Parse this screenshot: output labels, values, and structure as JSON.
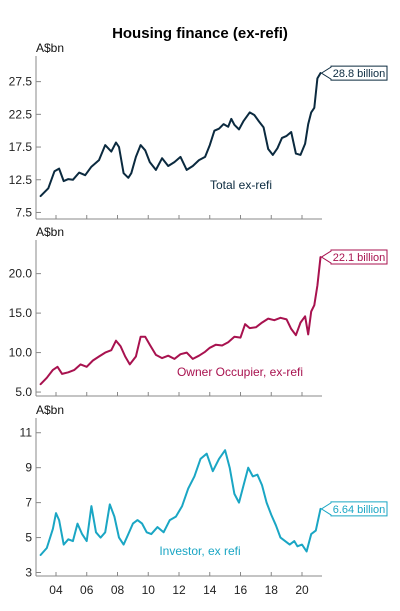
{
  "chart_data": {
    "type": "line",
    "title": "Housing finance (ex-refi)",
    "x_range": [
      2002.7,
      2021.3
    ],
    "x_ticks": [
      {
        "value": 2004,
        "label": "04"
      },
      {
        "value": 2006,
        "label": "06"
      },
      {
        "value": 2008,
        "label": "08"
      },
      {
        "value": 2010,
        "label": "10"
      },
      {
        "value": 2012,
        "label": "12"
      },
      {
        "value": 2014,
        "label": "14"
      },
      {
        "value": 2016,
        "label": "16"
      },
      {
        "value": 2018,
        "label": "18"
      },
      {
        "value": 2020,
        "label": "20"
      }
    ],
    "panels": [
      {
        "id": "total",
        "unit": "A$bn",
        "series_label": "Total ex-refi",
        "color": "#0b2a3f",
        "ylim": [
          6.5,
          30.5
        ],
        "y_ticks": [
          {
            "value": 7.5,
            "label": "7.5"
          },
          {
            "value": 12.5,
            "label": "12.5"
          },
          {
            "value": 17.5,
            "label": "17.5"
          },
          {
            "value": 22.5,
            "label": "22.5"
          },
          {
            "value": 27.5,
            "label": "27.5"
          }
        ],
        "callout": "28.8 billion",
        "x": [
          2003.0,
          2003.5,
          2003.9,
          2004.2,
          2004.5,
          2004.8,
          2005.1,
          2005.5,
          2005.9,
          2006.3,
          2006.8,
          2007.2,
          2007.6,
          2007.9,
          2008.1,
          2008.4,
          2008.7,
          2008.9,
          2009.2,
          2009.5,
          2009.8,
          2010.1,
          2010.5,
          2010.9,
          2011.3,
          2011.7,
          2012.1,
          2012.5,
          2012.9,
          2013.3,
          2013.7,
          2014.0,
          2014.3,
          2014.6,
          2014.9,
          2015.2,
          2015.4,
          2015.6,
          2015.9,
          2016.2,
          2016.6,
          2016.9,
          2017.2,
          2017.5,
          2017.8,
          2018.1,
          2018.4,
          2018.7,
          2019.0,
          2019.3,
          2019.6,
          2019.9,
          2020.2,
          2020.4,
          2020.6,
          2020.8,
          2021.0,
          2021.2
        ],
        "y": [
          10.0,
          11.2,
          13.8,
          14.2,
          12.3,
          12.6,
          12.5,
          13.6,
          13.2,
          14.5,
          15.5,
          17.8,
          16.8,
          18.2,
          17.5,
          13.5,
          12.8,
          13.5,
          16.0,
          17.8,
          17.0,
          15.2,
          14.0,
          15.8,
          14.6,
          15.2,
          16.0,
          14.0,
          14.6,
          15.5,
          16.0,
          17.8,
          20.0,
          20.3,
          21.0,
          20.6,
          21.8,
          20.9,
          20.2,
          21.5,
          22.8,
          22.4,
          21.4,
          20.5,
          17.2,
          16.3,
          17.3,
          18.9,
          19.2,
          19.8,
          16.5,
          16.3,
          18.0,
          21.0,
          22.8,
          23.5,
          28.0,
          28.8
        ]
      },
      {
        "id": "owner-occupier",
        "unit": "A$bn",
        "series_label": "Owner Occupier, ex-refi",
        "color": "#a8124f",
        "ylim": [
          4.5,
          23.5
        ],
        "y_ticks": [
          {
            "value": 5,
            "label": "5.0"
          },
          {
            "value": 10,
            "label": "10.0"
          },
          {
            "value": 15,
            "label": "15.0"
          },
          {
            "value": 20,
            "label": "20.0"
          }
        ],
        "callout": "22.1 billion",
        "x": [
          2003.0,
          2003.4,
          2003.8,
          2004.1,
          2004.4,
          2004.8,
          2005.2,
          2005.6,
          2006.0,
          2006.4,
          2006.8,
          2007.2,
          2007.6,
          2007.9,
          2008.2,
          2008.5,
          2008.8,
          2009.2,
          2009.5,
          2009.8,
          2010.1,
          2010.5,
          2010.9,
          2011.3,
          2011.7,
          2012.1,
          2012.5,
          2012.9,
          2013.3,
          2013.7,
          2014.0,
          2014.4,
          2014.8,
          2015.2,
          2015.6,
          2016.0,
          2016.3,
          2016.6,
          2017.0,
          2017.4,
          2017.8,
          2018.2,
          2018.6,
          2019.0,
          2019.3,
          2019.6,
          2019.9,
          2020.2,
          2020.4,
          2020.6,
          2020.8,
          2021.0,
          2021.2
        ],
        "y": [
          6.0,
          6.8,
          7.8,
          8.2,
          7.3,
          7.5,
          7.8,
          8.5,
          8.2,
          9.0,
          9.5,
          10.0,
          10.3,
          11.5,
          10.8,
          9.5,
          8.5,
          9.5,
          12.0,
          12.0,
          11.0,
          9.7,
          9.3,
          9.6,
          9.2,
          9.8,
          10.0,
          9.2,
          9.6,
          10.1,
          10.6,
          11.0,
          10.9,
          11.3,
          12.0,
          11.9,
          13.6,
          13.1,
          13.2,
          13.8,
          14.3,
          14.1,
          14.4,
          14.2,
          13.0,
          12.2,
          13.8,
          14.6,
          12.3,
          15.2,
          16.0,
          18.5,
          22.1
        ]
      },
      {
        "id": "investor",
        "unit": "A$bn",
        "series_label": "Investor, ex refi",
        "color": "#1aa6c4",
        "ylim": [
          2.8,
          11.5
        ],
        "y_ticks": [
          {
            "value": 3,
            "label": "3"
          },
          {
            "value": 5,
            "label": "5"
          },
          {
            "value": 7,
            "label": "7"
          },
          {
            "value": 9,
            "label": "9"
          },
          {
            "value": 11,
            "label": "11"
          }
        ],
        "callout": "6.64 billion",
        "x": [
          2003.0,
          2003.4,
          2003.8,
          2004.0,
          2004.2,
          2004.5,
          2004.8,
          2005.1,
          2005.4,
          2005.7,
          2006.0,
          2006.3,
          2006.6,
          2006.9,
          2007.2,
          2007.5,
          2007.8,
          2008.1,
          2008.4,
          2008.7,
          2009.0,
          2009.3,
          2009.6,
          2009.9,
          2010.2,
          2010.6,
          2011.0,
          2011.4,
          2011.8,
          2012.2,
          2012.6,
          2013.0,
          2013.4,
          2013.8,
          2014.2,
          2014.6,
          2015.0,
          2015.3,
          2015.6,
          2015.9,
          2016.2,
          2016.5,
          2016.8,
          2017.1,
          2017.4,
          2017.7,
          2018.0,
          2018.3,
          2018.6,
          2018.9,
          2019.2,
          2019.5,
          2019.7,
          2020.0,
          2020.3,
          2020.6,
          2020.9,
          2021.2
        ],
        "y": [
          4.0,
          4.4,
          5.5,
          6.4,
          6.0,
          4.6,
          4.9,
          4.8,
          5.8,
          5.2,
          4.8,
          6.8,
          5.3,
          5.0,
          5.3,
          6.9,
          6.2,
          5.0,
          4.6,
          5.2,
          5.8,
          6.0,
          5.8,
          5.3,
          5.2,
          5.6,
          5.3,
          6.0,
          6.2,
          6.8,
          7.8,
          8.5,
          9.5,
          9.8,
          8.8,
          9.5,
          10.0,
          9.0,
          7.5,
          7.0,
          8.0,
          9.0,
          8.5,
          8.6,
          8.0,
          7.0,
          6.3,
          5.7,
          5.0,
          4.8,
          4.6,
          4.8,
          4.5,
          4.6,
          4.2,
          5.2,
          5.4,
          6.64
        ]
      }
    ]
  }
}
